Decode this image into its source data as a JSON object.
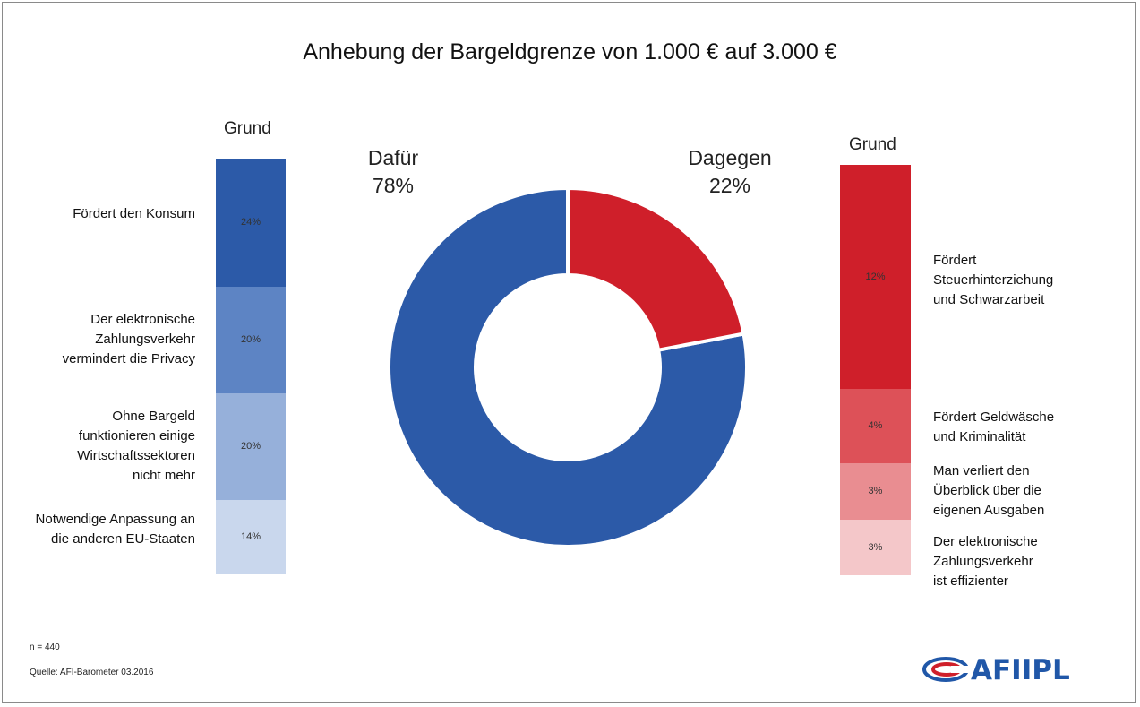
{
  "title": "Anhebung der Bargeldgrenze von 1.000 € auf 3.000 €",
  "colors": {
    "blue_1": "#2c5aa8",
    "blue_2": "#5d84c4",
    "blue_3": "#96b0da",
    "blue_4": "#c9d7ed",
    "red_1": "#cf1f2a",
    "red_2": "#dd5158",
    "red_3": "#e98d91",
    "red_4": "#f4c7c9",
    "logo_blue": "#2057a8",
    "logo_red": "#cf1f2a"
  },
  "chart_data": [
    {
      "type": "pie",
      "variant": "donut",
      "categories": [
        "Dafür",
        "Dagegen"
      ],
      "values": [
        78,
        22
      ],
      "unit": "%",
      "labels": [
        {
          "name": "Dafür",
          "value_label": "78%"
        },
        {
          "name": "Dagegen",
          "value_label": "22%"
        }
      ]
    },
    {
      "type": "bar",
      "variant": "stacked",
      "heading": "Grund",
      "categories": [
        "Fördert den Konsum",
        "Der elektronische Zahlungsverkehr vermindert die Privacy",
        "Ohne Bargeld funktionieren einige Wirtschaftssektoren nicht mehr",
        "Notwendige Anpassung an die anderen EU-Staaten"
      ],
      "label_lines": [
        [
          "Fördert den Konsum"
        ],
        [
          "Der elektronische",
          "Zahlungsverkehr",
          "vermindert die Privacy"
        ],
        [
          "Ohne Bargeld",
          "funktionieren einige",
          "Wirtschaftssektoren",
          "nicht mehr"
        ],
        [
          "Notwendige Anpassung an",
          "die anderen EU-Staaten"
        ]
      ],
      "values": [
        24,
        20,
        20,
        14
      ],
      "value_labels": [
        "24%",
        "20%",
        "20%",
        "14%"
      ],
      "unit": "%"
    },
    {
      "type": "bar",
      "variant": "stacked",
      "heading": "Grund",
      "categories": [
        "Fördert Steuerhinterziehung und Schwarzarbeit",
        "Fördert Geldwäsche und Kriminalität",
        "Man verliert den Überblick über die eigenen Ausgaben",
        "Der elektronische Zahlungsverkehr ist effizienter"
      ],
      "label_lines": [
        [
          "Fördert",
          "Steuerhinterziehung",
          "und Schwarzarbeit"
        ],
        [
          "Fördert Geldwäsche",
          "und Kriminalität"
        ],
        [
          "Man verliert den",
          "Überblick über die",
          "eigenen Ausgaben"
        ],
        [
          "Der elektronische",
          "Zahlungsverkehr",
          "ist effizienter"
        ]
      ],
      "values": [
        12,
        4,
        3,
        3
      ],
      "value_labels": [
        "12%",
        "4%",
        "3%",
        "3%"
      ],
      "unit": "%"
    }
  ],
  "footer": {
    "n": "n = 440",
    "source": "Quelle: AFI-Barometer 03.2016"
  },
  "logo": {
    "text": "AFIIPL"
  }
}
